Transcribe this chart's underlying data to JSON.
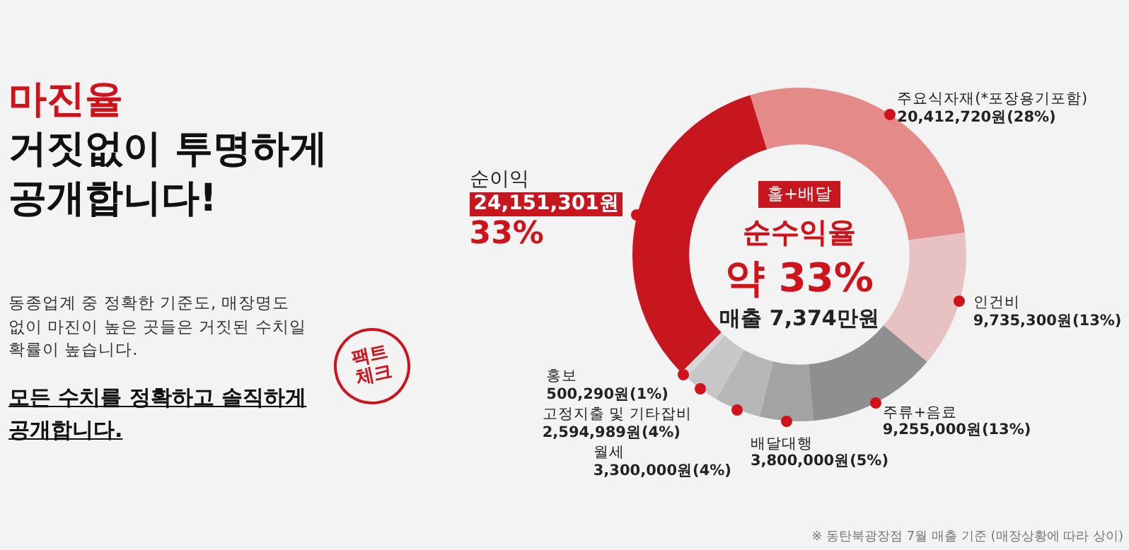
{
  "chart_data": {
    "type": "donut",
    "title": "마진율",
    "subtitle": "거짓없이 투명하게 공개합니다!",
    "categories": [
      "순이익",
      "주요식자재(*포장용기포함)",
      "인건비",
      "주류+음료",
      "배달대행",
      "월세",
      "고정지출 및 기타잡비",
      "홍보"
    ],
    "values": [
      24151301,
      20412720,
      9735300,
      9255000,
      3800000,
      3300000,
      2594989,
      500290
    ],
    "colors": [
      "#c8161e",
      "#e48a89",
      "#e8c2c3",
      "#8f8f8f",
      "#a3a3a3",
      "#b6b6b6",
      "#c7c7c7",
      "#d7d7d7"
    ],
    "value_labels": [
      "24,151,301원\n33%",
      "20,412,720원(28%)",
      "9,735,300원(13%)",
      "9,255,000원(13%)",
      "3,800,000원(5%)",
      "3,300,000원(4%)",
      "2,594,989원(4%)",
      "500,290원(1%)"
    ],
    "annotations": [
      "동종업계 중 정확한 기준도, 매장명도 없이 마진이 높은 곳들은 거짓된 수치일 확률이 높습니다.",
      "모든 수치를 정확하고 솔직하게 공개합니다.",
      "팩트 체크",
      "홀+배달",
      "순수익율",
      "약 33%",
      "매출 7,374만원",
      "※ 동탄북광장점 7월 매출 기준 (매장상황에 따라 상이)"
    ]
  }
}
